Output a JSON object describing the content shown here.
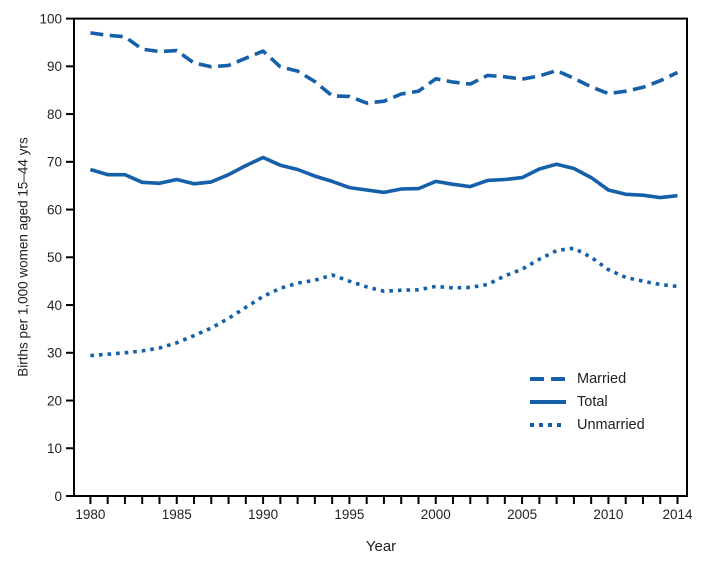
{
  "chart_data": {
    "type": "line",
    "title": "",
    "xlabel": "Year",
    "ylabel": "Births per 1,000 women aged 15–44 yrs",
    "xlim": [
      1979.05,
      2014.55
    ],
    "ylim": [
      0,
      100
    ],
    "grid": false,
    "legend_position": "inside-lower-right",
    "colors": {
      "line": "#1560a8",
      "axis": "#000000",
      "text": "#231f20",
      "background": "#ffffff"
    },
    "y_ticks": [
      0,
      10,
      20,
      30,
      40,
      50,
      60,
      70,
      80,
      90,
      100
    ],
    "x_ticks_labeled": [
      1980,
      1985,
      1990,
      1995,
      2000,
      2005,
      2010,
      2014
    ],
    "x": [
      1980,
      1981,
      1982,
      1983,
      1984,
      1985,
      1986,
      1987,
      1988,
      1989,
      1990,
      1991,
      1992,
      1993,
      1994,
      1995,
      1996,
      1997,
      1998,
      1999,
      2000,
      2001,
      2002,
      2003,
      2004,
      2005,
      2006,
      2007,
      2008,
      2009,
      2010,
      2011,
      2012,
      2013,
      2014
    ],
    "series": [
      {
        "name": "Married",
        "style": "dashed",
        "values": [
          97.0,
          96.5,
          96.2,
          93.6,
          93.1,
          93.3,
          90.7,
          89.9,
          90.2,
          91.7,
          93.2,
          89.9,
          89.0,
          86.8,
          83.8,
          83.7,
          82.3,
          82.7,
          84.2,
          84.8,
          87.4,
          86.7,
          86.3,
          88.1,
          87.8,
          87.3,
          88.0,
          89.1,
          87.5,
          85.7,
          84.3,
          84.8,
          85.6,
          87.0,
          88.7
        ]
      },
      {
        "name": "Total",
        "style": "solid",
        "values": [
          68.4,
          67.3,
          67.3,
          65.7,
          65.5,
          66.3,
          65.4,
          65.8,
          67.3,
          69.2,
          70.9,
          69.3,
          68.4,
          67.0,
          65.9,
          64.6,
          64.1,
          63.6,
          64.3,
          64.4,
          65.9,
          65.3,
          64.8,
          66.1,
          66.3,
          66.7,
          68.5,
          69.5,
          68.6,
          66.7,
          64.1,
          63.2,
          63.0,
          62.5,
          62.9
        ]
      },
      {
        "name": "Unmarried",
        "style": "dotted",
        "values": [
          29.4,
          29.7,
          30.0,
          30.4,
          31.0,
          32.1,
          33.6,
          35.2,
          37.2,
          39.5,
          41.8,
          43.5,
          44.6,
          45.2,
          46.3,
          45.0,
          43.8,
          42.9,
          43.1,
          43.2,
          43.9,
          43.6,
          43.7,
          44.3,
          46.1,
          47.5,
          49.6,
          51.4,
          51.9,
          50.0,
          47.4,
          45.8,
          45.0,
          44.3,
          43.9
        ]
      }
    ]
  }
}
